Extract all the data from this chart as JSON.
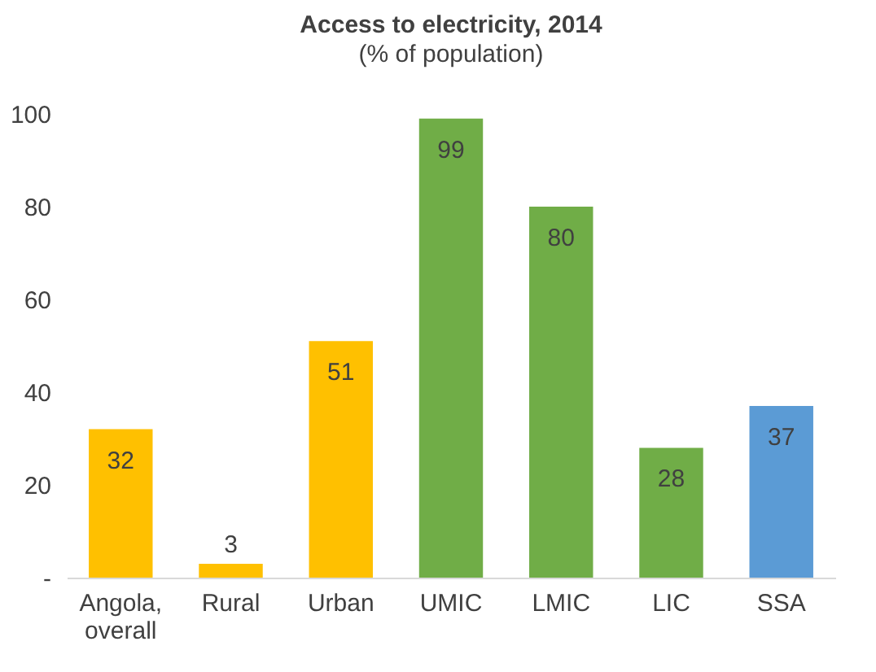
{
  "chart_data": {
    "type": "bar",
    "title": "Access to electricity, 2014",
    "subtitle": "(% of population)",
    "categories": [
      "Angola, overall",
      "Rural",
      "Urban",
      "UMIC",
      "LMIC",
      "LIC",
      "SSA"
    ],
    "values": [
      32,
      3,
      51,
      99,
      80,
      28,
      37
    ],
    "colors": [
      "#ffc000",
      "#ffc000",
      "#ffc000",
      "#70ad47",
      "#70ad47",
      "#70ad47",
      "#5b9bd5"
    ],
    "ylim": [
      0,
      100
    ],
    "yticks": [
      {
        "value": 0,
        "label": "-"
      },
      20,
      40,
      60,
      80,
      100
    ],
    "grid": false,
    "data_labels": true
  }
}
